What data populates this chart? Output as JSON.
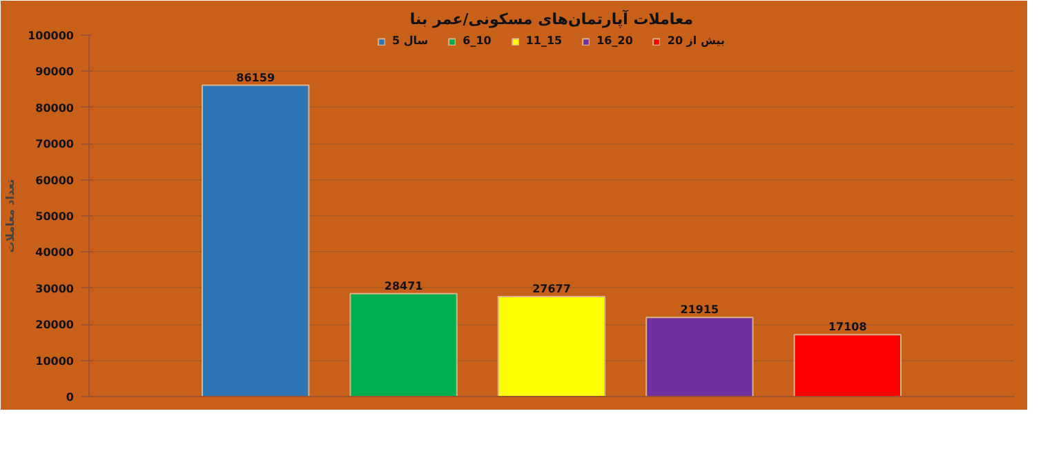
{
  "chart_data": {
    "type": "bar",
    "title": "معاملات آپارتمان‌های مسکونی/عمر بنا",
    "ylabel": "تعداد معاملات",
    "categories": [
      null
    ],
    "series": [
      {
        "name": "5 سال",
        "color": "#2e75b6",
        "values": [
          86159
        ]
      },
      {
        "name": "6_10",
        "color": "#00b050",
        "values": [
          28471
        ]
      },
      {
        "name": "11_15",
        "color": "#ffff00",
        "values": [
          27677
        ]
      },
      {
        "name": "16_20",
        "color": "#7030a0",
        "values": [
          21915
        ]
      },
      {
        "name": "بیش از 20",
        "color": "#ff0000",
        "values": [
          17108
        ]
      }
    ],
    "ylim": [
      0,
      100000
    ],
    "yticks": [
      0,
      10000,
      20000,
      30000,
      40000,
      50000,
      60000,
      70000,
      80000,
      90000,
      100000
    ],
    "grid": "y",
    "legend": "top",
    "data_labels": true
  }
}
